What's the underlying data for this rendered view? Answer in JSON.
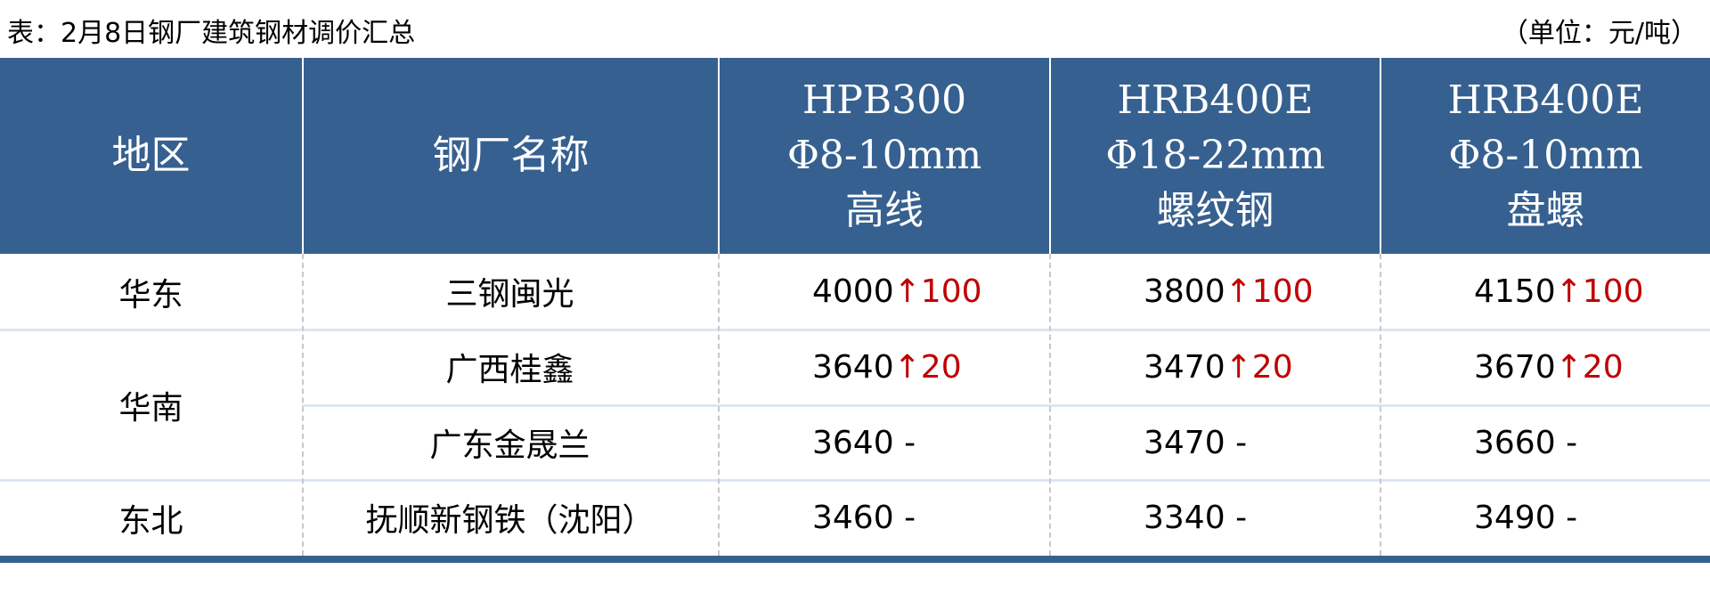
{
  "title": "表：2月8日钢厂建筑钢材调价汇总",
  "unit": "（单位：元/吨）",
  "colors": {
    "header_bg": "#36608f",
    "increase": "#c00000",
    "row_separator": "#dce6f1"
  },
  "headers": [
    {
      "lines": [
        "地区"
      ]
    },
    {
      "lines": [
        "钢厂名称"
      ]
    },
    {
      "lines": [
        "HPB300",
        "Φ8-10mm",
        "高线"
      ]
    },
    {
      "lines": [
        "HRB400E",
        "Φ18-22mm",
        "螺纹钢"
      ]
    },
    {
      "lines": [
        "HRB400E",
        "Φ8-10mm",
        "盘螺"
      ]
    }
  ],
  "regions": [
    "华东",
    "华南",
    "东北"
  ],
  "rows": [
    {
      "mill": "三钢闽光",
      "prices": [
        {
          "v": "4000",
          "arrow": "↑",
          "chg": "100"
        },
        {
          "v": "3800",
          "arrow": "↑",
          "chg": "100"
        },
        {
          "v": "4150",
          "arrow": "↑",
          "chg": "100"
        }
      ]
    },
    {
      "mill": "广西桂鑫",
      "prices": [
        {
          "v": "3640",
          "arrow": "↑",
          "chg": "20"
        },
        {
          "v": "3470",
          "arrow": "↑",
          "chg": "20"
        },
        {
          "v": "3670",
          "arrow": "↑",
          "chg": "20"
        }
      ]
    },
    {
      "mill": "广东金晟兰",
      "prices": [
        {
          "v": "3640",
          "chg": " -"
        },
        {
          "v": "3470",
          "chg": " -"
        },
        {
          "v": "3660",
          "chg": " -"
        }
      ]
    },
    {
      "mill": "抚顺新钢铁（沈阳）",
      "prices": [
        {
          "v": "3460",
          "chg": " -"
        },
        {
          "v": "3340",
          "chg": " -"
        },
        {
          "v": "3490",
          "chg": " -"
        }
      ]
    }
  ]
}
